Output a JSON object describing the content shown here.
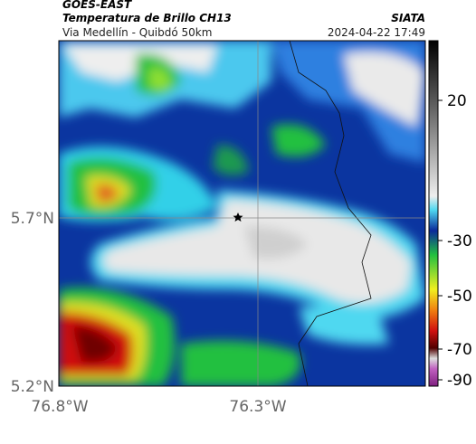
{
  "header": {
    "satellite": "GOES-EAST",
    "title": "Temperatura de Brillo CH13",
    "route": "Via Medellín - Quibdó 50km",
    "source": "SIATA",
    "datetime": "2024-04-22 17:49"
  },
  "axes": {
    "y_labels": [
      "5.7°N",
      "5.2°N"
    ],
    "x_labels": [
      "76.8°W",
      "76.3°W"
    ]
  },
  "colorbar": {
    "ticks": [
      20,
      -30,
      -50,
      -70,
      -90
    ]
  }
}
